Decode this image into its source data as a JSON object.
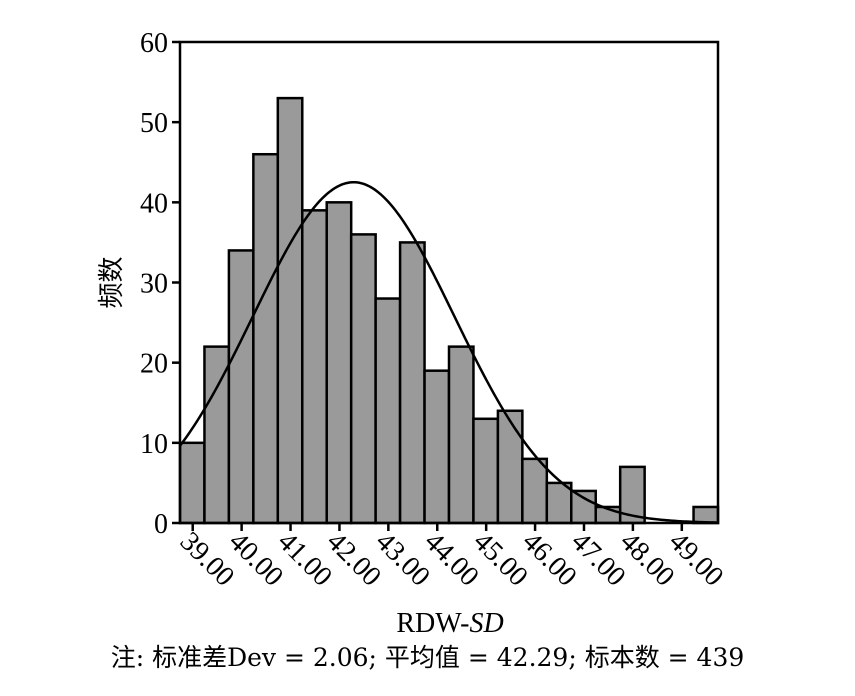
{
  "chart_data": {
    "type": "bar",
    "subtype": "histogram with normal curve",
    "xlabel_main": "RDW-",
    "xlabel_italic": "SD",
    "ylabel": "频数",
    "ylim": [
      0,
      60
    ],
    "yticks": [
      "0",
      "10",
      "20",
      "30",
      "40",
      "50",
      "60"
    ],
    "xlim": [
      38.74,
      49.74
    ],
    "xticks": [
      "39.00",
      "40.00",
      "41.00",
      "42.00",
      "43.00",
      "44.00",
      "45.00",
      "46.00",
      "47.00",
      "48.00",
      "49.00"
    ],
    "bin_width": 0.5,
    "bin_start": 38.74,
    "values": [
      10,
      22,
      34,
      46,
      53,
      39,
      40,
      36,
      28,
      35,
      19,
      22,
      13,
      14,
      8,
      5,
      4,
      2,
      7,
      0,
      0,
      2
    ],
    "curve": {
      "mean": 42.29,
      "std_dev": 2.06,
      "n": 439
    },
    "bar_color": "#9a9a9a",
    "grid": false,
    "legend": "none"
  },
  "note": "注: 标准差Dev = 2.06; 平均值 = 42.29; 标本数 = 439"
}
